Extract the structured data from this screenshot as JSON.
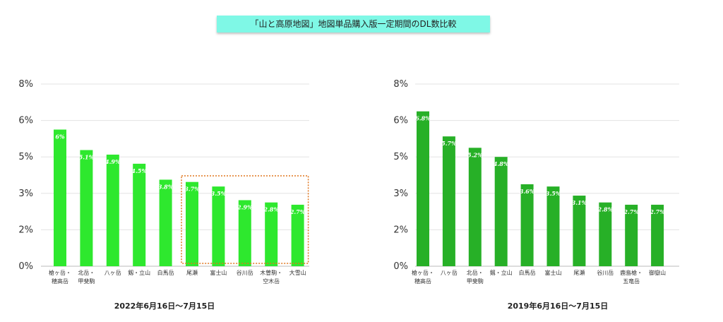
{
  "title": "「山と高原地図」地図単品購入版一定期間のDL数比較",
  "chart_data": [
    {
      "type": "bar",
      "caption": "2022年6月16日〜7月15日",
      "color": "#2ee82e",
      "highlight_color": "#e0761e",
      "highlight_range": [
        5,
        9
      ],
      "ylim": [
        0,
        0.08
      ],
      "yticks": [
        "0%",
        "2%",
        "3%",
        "5%",
        "6%",
        "8%"
      ],
      "categories": [
        [
          "槍ヶ岳・",
          "穂高岳"
        ],
        [
          "北岳・",
          "甲斐駒"
        ],
        [
          "八ヶ岳"
        ],
        [
          "剱・立山"
        ],
        [
          "白馬岳"
        ],
        [
          "尾瀬"
        ],
        [
          "富士山"
        ],
        [
          "谷川岳"
        ],
        [
          "木曽駒・",
          "空木岳"
        ],
        [
          "大雪山"
        ]
      ],
      "values": [
        0.06,
        0.051,
        0.049,
        0.045,
        0.038,
        0.037,
        0.035,
        0.029,
        0.028,
        0.027
      ],
      "labels": [
        "6%",
        "5.1%",
        "4.9%",
        "4.5%",
        "3.8%",
        "3.7%",
        "3.5%",
        "2.9%",
        "2.8%",
        "2.7%"
      ]
    },
    {
      "type": "bar",
      "caption": "2019年6月16日〜7月15日",
      "color": "#27b027",
      "ylim": [
        0,
        0.08
      ],
      "yticks": [
        "0%",
        "2%",
        "3%",
        "5%",
        "6%",
        "8%"
      ],
      "categories": [
        [
          "槍ヶ岳・",
          "穂高岳"
        ],
        [
          "八ヶ岳"
        ],
        [
          "北岳・",
          "甲斐駒"
        ],
        [
          "剱・立山"
        ],
        [
          "白馬岳"
        ],
        [
          "富士山"
        ],
        [
          "尾瀬"
        ],
        [
          "谷川岳"
        ],
        [
          "鹿島槍・",
          "五竜岳"
        ],
        [
          "御嶽山"
        ]
      ],
      "values": [
        0.068,
        0.057,
        0.052,
        0.048,
        0.036,
        0.035,
        0.031,
        0.028,
        0.027,
        0.027
      ],
      "labels": [
        "6.8%",
        "5.7%",
        "5.2%",
        "4.8%",
        "3.6%",
        "3.5%",
        "3.1%",
        "2.8%",
        "2.7%",
        "2.7%"
      ]
    }
  ]
}
